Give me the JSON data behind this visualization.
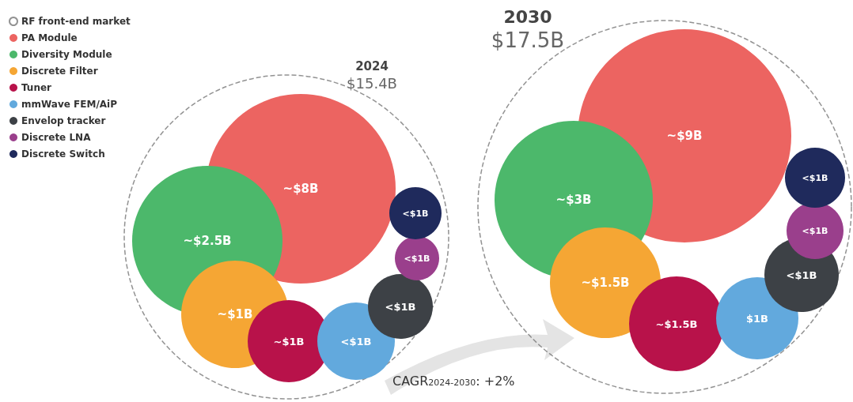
{
  "chart_data": {
    "type": "other",
    "legend": "top left",
    "legend_title": "RF front-end market",
    "categories": [
      "2024",
      "2030"
    ],
    "totals": [
      "$15.4B",
      "$17.5B"
    ],
    "series": [
      {
        "name": "PA Module",
        "color": "#ec6461",
        "values": [
          8,
          9
        ],
        "value_labels": [
          "~$8B",
          "~$9B"
        ]
      },
      {
        "name": "Diversity Module",
        "color": "#4cb86b",
        "values": [
          2.5,
          3
        ],
        "value_labels": [
          "~$2.5B",
          "~$3B"
        ]
      },
      {
        "name": "Discrete Filter",
        "color": "#f5a634",
        "values": [
          1,
          1.5
        ],
        "value_labels": [
          "~$1B",
          "~$1.5B"
        ]
      },
      {
        "name": "Tuner",
        "color": "#b8124a",
        "values": [
          1,
          1.5
        ],
        "value_labels": [
          "~$1B",
          "~$1.5B"
        ]
      },
      {
        "name": "mmWave FEM/AiP",
        "color": "#62a9dd",
        "values": [
          null,
          1
        ],
        "value_labels": [
          "<$1B",
          "$1B"
        ]
      },
      {
        "name": "Envelop tracker",
        "color": "#3d4146",
        "values": [
          null,
          null
        ],
        "value_labels": [
          "<$1B",
          "<$1B"
        ]
      },
      {
        "name": "Discrete LNA",
        "color": "#9a3f8c",
        "values": [
          null,
          null
        ],
        "value_labels": [
          "<$1B",
          "<$1B"
        ]
      },
      {
        "name": "Discrete Switch",
        "color": "#1f2a5c",
        "values": [
          null,
          null
        ],
        "value_labels": [
          "<$1B",
          "<$1B"
        ]
      }
    ],
    "annotations": [
      "CAGR$_{2024-2030}$: +2%"
    ]
  }
}
